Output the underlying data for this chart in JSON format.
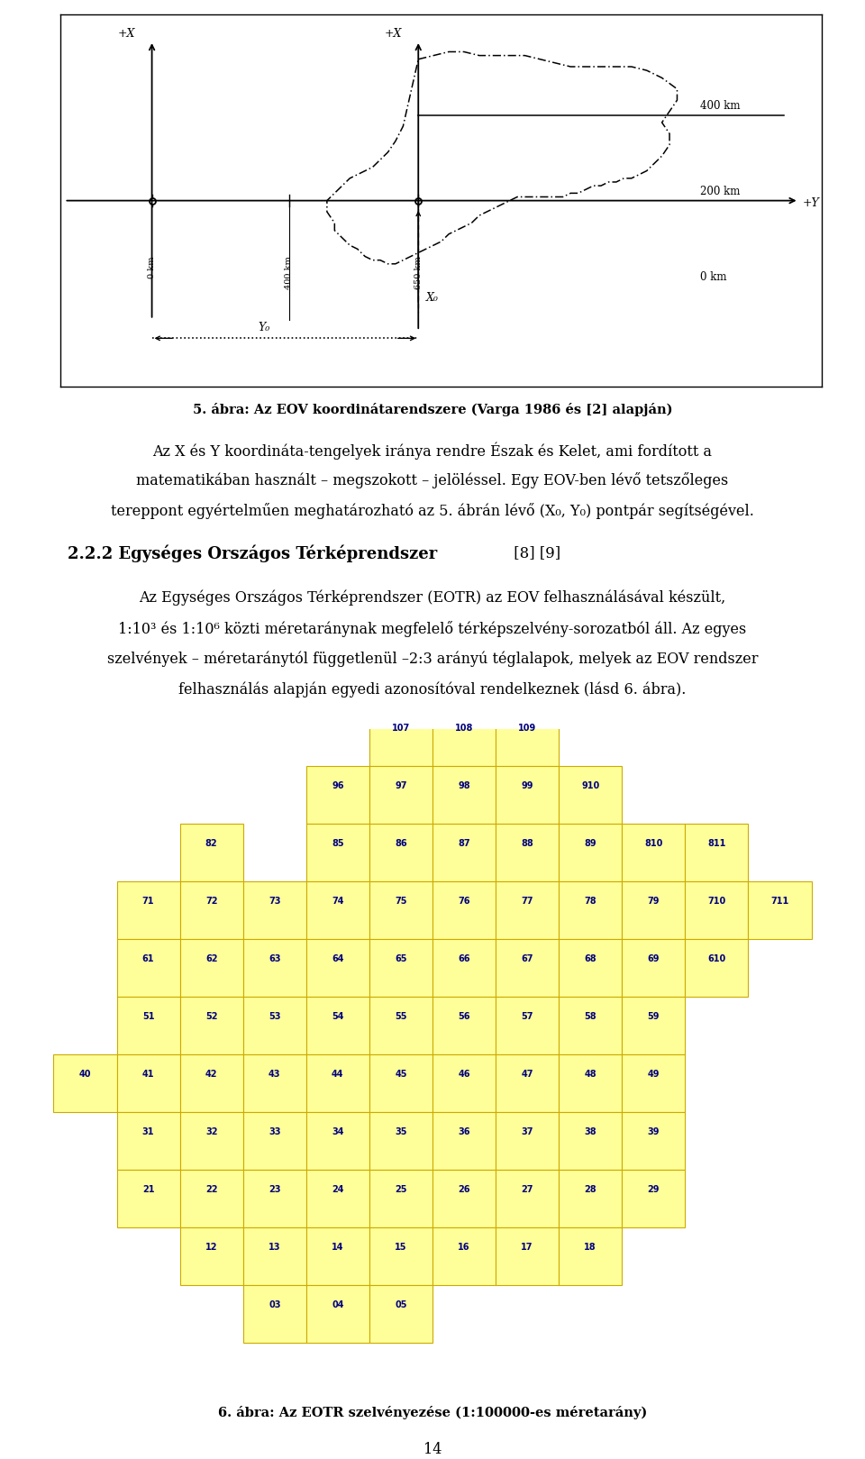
{
  "bg_color": "#ffffff",
  "fig5_caption": "5. ábra: Az EOV koordinátarendszere (Varga 1986 és [2] alapján)",
  "body_line1": "Az X és Y koordináta-tengelyek iránya rendre Észak és Kelet, ami fordított a",
  "body_line2": "matematikában használt – megszokott – jelöléssel. Egy EOV-ben lévő tetszőleges",
  "body_line3": "tereppont egyértelműen meghatározható az 5. ábrán lévő (X₀, Y₀) pontpár segítségével.",
  "section_heading": "2.2.2 Egységes Országos Térképrendszer",
  "section_refs": " [8] [9]",
  "body2_line1": "Az Egységes Országos Térképrendszer (EOTR) az EOV felhasználásával készült,",
  "body2_line2": "1:10³ és 1:10⁶ közti méretaránynak megfelelő térképszelvény-sorozatból áll. Az egyes",
  "body2_line3": "szelvények – méretaránytól függetlenül –2:3 arányú téglalapok, melyek az EOV rendszer",
  "body2_line4": "felhasználás alapján egyedi azonosítóval rendelkeznek (lásd 6. ábra).",
  "fig6_caption": "6. ábra: Az EOTR szelvényezése (1:100000-es méretarány)",
  "page_number": "14",
  "cell_fill": "#ffff99",
  "cell_edge": "#ccaa00",
  "cell_text_color": "#000080",
  "map_cells": [
    {
      "row": 0,
      "col": 4,
      "label": "107"
    },
    {
      "row": 0,
      "col": 5,
      "label": "108"
    },
    {
      "row": 0,
      "col": 6,
      "label": "109"
    },
    {
      "row": 1,
      "col": 3,
      "label": "96"
    },
    {
      "row": 1,
      "col": 4,
      "label": "97"
    },
    {
      "row": 1,
      "col": 5,
      "label": "98"
    },
    {
      "row": 1,
      "col": 6,
      "label": "99"
    },
    {
      "row": 1,
      "col": 7,
      "label": "910"
    },
    {
      "row": 2,
      "col": 1,
      "label": "82"
    },
    {
      "row": 2,
      "col": 3,
      "label": "85"
    },
    {
      "row": 2,
      "col": 4,
      "label": "86"
    },
    {
      "row": 2,
      "col": 5,
      "label": "87"
    },
    {
      "row": 2,
      "col": 6,
      "label": "88"
    },
    {
      "row": 2,
      "col": 7,
      "label": "89"
    },
    {
      "row": 2,
      "col": 8,
      "label": "810"
    },
    {
      "row": 2,
      "col": 9,
      "label": "811"
    },
    {
      "row": 3,
      "col": 0,
      "label": "71"
    },
    {
      "row": 3,
      "col": 1,
      "label": "72"
    },
    {
      "row": 3,
      "col": 2,
      "label": "73"
    },
    {
      "row": 3,
      "col": 3,
      "label": "74"
    },
    {
      "row": 3,
      "col": 4,
      "label": "75"
    },
    {
      "row": 3,
      "col": 5,
      "label": "76"
    },
    {
      "row": 3,
      "col": 6,
      "label": "77"
    },
    {
      "row": 3,
      "col": 7,
      "label": "78"
    },
    {
      "row": 3,
      "col": 8,
      "label": "79"
    },
    {
      "row": 3,
      "col": 9,
      "label": "710"
    },
    {
      "row": 3,
      "col": 10,
      "label": "711"
    },
    {
      "row": 4,
      "col": 0,
      "label": "61"
    },
    {
      "row": 4,
      "col": 1,
      "label": "62"
    },
    {
      "row": 4,
      "col": 2,
      "label": "63"
    },
    {
      "row": 4,
      "col": 3,
      "label": "64"
    },
    {
      "row": 4,
      "col": 4,
      "label": "65"
    },
    {
      "row": 4,
      "col": 5,
      "label": "66"
    },
    {
      "row": 4,
      "col": 6,
      "label": "67"
    },
    {
      "row": 4,
      "col": 7,
      "label": "68"
    },
    {
      "row": 4,
      "col": 8,
      "label": "69"
    },
    {
      "row": 4,
      "col": 9,
      "label": "610"
    },
    {
      "row": 5,
      "col": 0,
      "label": "51"
    },
    {
      "row": 5,
      "col": 1,
      "label": "52"
    },
    {
      "row": 5,
      "col": 2,
      "label": "53"
    },
    {
      "row": 5,
      "col": 3,
      "label": "54"
    },
    {
      "row": 5,
      "col": 4,
      "label": "55"
    },
    {
      "row": 5,
      "col": 5,
      "label": "56"
    },
    {
      "row": 5,
      "col": 6,
      "label": "57"
    },
    {
      "row": 5,
      "col": 7,
      "label": "58"
    },
    {
      "row": 5,
      "col": 8,
      "label": "59"
    },
    {
      "row": 6,
      "col": -1,
      "label": "40"
    },
    {
      "row": 6,
      "col": 0,
      "label": "41"
    },
    {
      "row": 6,
      "col": 1,
      "label": "42"
    },
    {
      "row": 6,
      "col": 2,
      "label": "43"
    },
    {
      "row": 6,
      "col": 3,
      "label": "44"
    },
    {
      "row": 6,
      "col": 4,
      "label": "45"
    },
    {
      "row": 6,
      "col": 5,
      "label": "46"
    },
    {
      "row": 6,
      "col": 6,
      "label": "47"
    },
    {
      "row": 6,
      "col": 7,
      "label": "48"
    },
    {
      "row": 6,
      "col": 8,
      "label": "49"
    },
    {
      "row": 7,
      "col": 0,
      "label": "31"
    },
    {
      "row": 7,
      "col": 1,
      "label": "32"
    },
    {
      "row": 7,
      "col": 2,
      "label": "33"
    },
    {
      "row": 7,
      "col": 3,
      "label": "34"
    },
    {
      "row": 7,
      "col": 4,
      "label": "35"
    },
    {
      "row": 7,
      "col": 5,
      "label": "36"
    },
    {
      "row": 7,
      "col": 6,
      "label": "37"
    },
    {
      "row": 7,
      "col": 7,
      "label": "38"
    },
    {
      "row": 7,
      "col": 8,
      "label": "39"
    },
    {
      "row": 8,
      "col": 0,
      "label": "21"
    },
    {
      "row": 8,
      "col": 1,
      "label": "22"
    },
    {
      "row": 8,
      "col": 2,
      "label": "23"
    },
    {
      "row": 8,
      "col": 3,
      "label": "24"
    },
    {
      "row": 8,
      "col": 4,
      "label": "25"
    },
    {
      "row": 8,
      "col": 5,
      "label": "26"
    },
    {
      "row": 8,
      "col": 6,
      "label": "27"
    },
    {
      "row": 8,
      "col": 7,
      "label": "28"
    },
    {
      "row": 8,
      "col": 8,
      "label": "29"
    },
    {
      "row": 9,
      "col": 1,
      "label": "12"
    },
    {
      "row": 9,
      "col": 2,
      "label": "13"
    },
    {
      "row": 9,
      "col": 3,
      "label": "14"
    },
    {
      "row": 9,
      "col": 4,
      "label": "15"
    },
    {
      "row": 9,
      "col": 5,
      "label": "16"
    },
    {
      "row": 9,
      "col": 6,
      "label": "17"
    },
    {
      "row": 9,
      "col": 7,
      "label": "18"
    },
    {
      "row": 10,
      "col": 2,
      "label": "03"
    },
    {
      "row": 10,
      "col": 3,
      "label": "04"
    },
    {
      "row": 10,
      "col": 4,
      "label": "05"
    }
  ]
}
